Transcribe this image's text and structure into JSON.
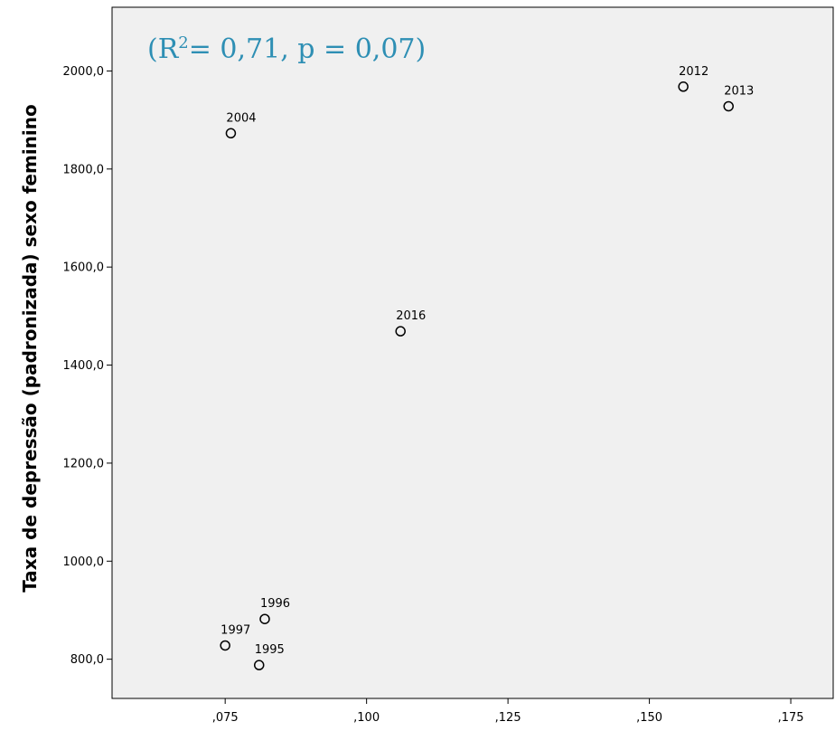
{
  "chart_data": {
    "type": "scatter",
    "title": "",
    "xlabel": "",
    "ylabel": "Taxa de depressão (padronizada) sexo feminino",
    "annotation": {
      "prefix": "(R",
      "superscript": "2",
      "suffix": "= 0,71, p = 0,07)",
      "color": "#2e8fb4"
    },
    "xlim": [
      0.055,
      0.1825
    ],
    "ylim": [
      720,
      2130
    ],
    "x_ticks": [
      {
        "value": 0.075,
        "label": ",075"
      },
      {
        "value": 0.1,
        "label": ",100"
      },
      {
        "value": 0.125,
        "label": ",125"
      },
      {
        "value": 0.15,
        "label": ",150"
      },
      {
        "value": 0.175,
        "label": ",175"
      }
    ],
    "y_ticks": [
      {
        "value": 800,
        "label": "800,0"
      },
      {
        "value": 1000,
        "label": "1000,0"
      },
      {
        "value": 1200,
        "label": "1200,0"
      },
      {
        "value": 1400,
        "label": "1400,0"
      },
      {
        "value": 1600,
        "label": "1600,0"
      },
      {
        "value": 1800,
        "label": "1800,0"
      },
      {
        "value": 2000,
        "label": "2000,0"
      }
    ],
    "points": [
      {
        "label": "1995",
        "x": 0.081,
        "y": 788
      },
      {
        "label": "1996",
        "x": 0.082,
        "y": 882
      },
      {
        "label": "1997",
        "x": 0.075,
        "y": 828
      },
      {
        "label": "2004",
        "x": 0.076,
        "y": 1873
      },
      {
        "label": "2012",
        "x": 0.156,
        "y": 1968
      },
      {
        "label": "2013",
        "x": 0.164,
        "y": 1928
      },
      {
        "label": "2016",
        "x": 0.106,
        "y": 1469
      }
    ],
    "plot_background": "#f0f0f0",
    "grid": false,
    "legend": "none"
  }
}
